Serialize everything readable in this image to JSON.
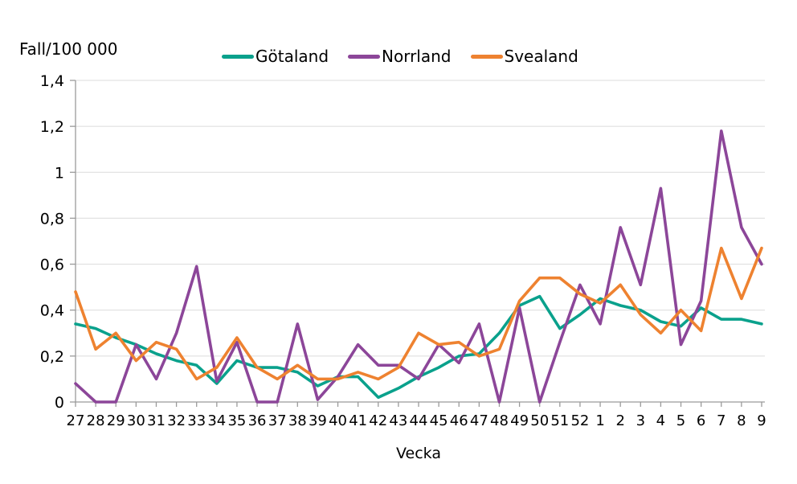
{
  "page": {
    "background": "#ffffff"
  },
  "chart_data": {
    "type": "line",
    "title": "Fall/100 000",
    "xlabel": "Vecka",
    "ylabel": "",
    "ylim": [
      0,
      1.4
    ],
    "grid": "horizontal",
    "legend_position": "top",
    "axis_color": "#9a9a9a",
    "gridline_color": "#dcdcdc",
    "text_color": "#000000",
    "ytick_values": [
      0,
      0.2,
      0.4,
      0.6,
      0.8,
      1.0,
      1.2,
      1.4
    ],
    "ytick_labels": [
      "0",
      "0,2",
      "0,4",
      "0,6",
      "0,8",
      "1",
      "1,2",
      "1,4"
    ],
    "categories": [
      "27",
      "28",
      "29",
      "30",
      "31",
      "32",
      "33",
      "34",
      "35",
      "36",
      "37",
      "38",
      "39",
      "40",
      "41",
      "42",
      "43",
      "44",
      "45",
      "46",
      "47",
      "48",
      "49",
      "50",
      "51",
      "52",
      "1",
      "2",
      "3",
      "4",
      "5",
      "6",
      "7",
      "8",
      "9"
    ],
    "series": [
      {
        "name": "Götaland",
        "color": "#0aa18c",
        "values": [
          0.34,
          0.32,
          0.28,
          0.25,
          0.21,
          0.18,
          0.16,
          0.08,
          0.18,
          0.15,
          0.15,
          0.13,
          0.07,
          0.11,
          0.11,
          0.02,
          0.06,
          0.11,
          0.15,
          0.2,
          0.21,
          0.3,
          0.42,
          0.46,
          0.32,
          0.38,
          0.45,
          0.42,
          0.4,
          0.35,
          0.33,
          0.41,
          0.36,
          0.36,
          0.34
        ]
      },
      {
        "name": "Norrland",
        "color": "#8c4699",
        "values": [
          0.08,
          0.0,
          0.0,
          0.25,
          0.1,
          0.3,
          0.59,
          0.09,
          0.26,
          0.0,
          0.0,
          0.34,
          0.01,
          0.11,
          0.25,
          0.16,
          0.16,
          0.1,
          0.25,
          0.17,
          0.34,
          0.0,
          0.41,
          0.0,
          0.26,
          0.51,
          0.34,
          0.76,
          0.51,
          0.93,
          0.25,
          0.44,
          1.18,
          0.76,
          0.6
        ]
      },
      {
        "name": "Svealand",
        "color": "#ee8230",
        "values": [
          0.48,
          0.23,
          0.3,
          0.18,
          0.26,
          0.23,
          0.1,
          0.15,
          0.28,
          0.15,
          0.1,
          0.16,
          0.1,
          0.1,
          0.13,
          0.1,
          0.15,
          0.3,
          0.25,
          0.26,
          0.2,
          0.23,
          0.44,
          0.54,
          0.54,
          0.47,
          0.43,
          0.51,
          0.38,
          0.3,
          0.4,
          0.31,
          0.67,
          0.45,
          0.67
        ]
      }
    ]
  }
}
